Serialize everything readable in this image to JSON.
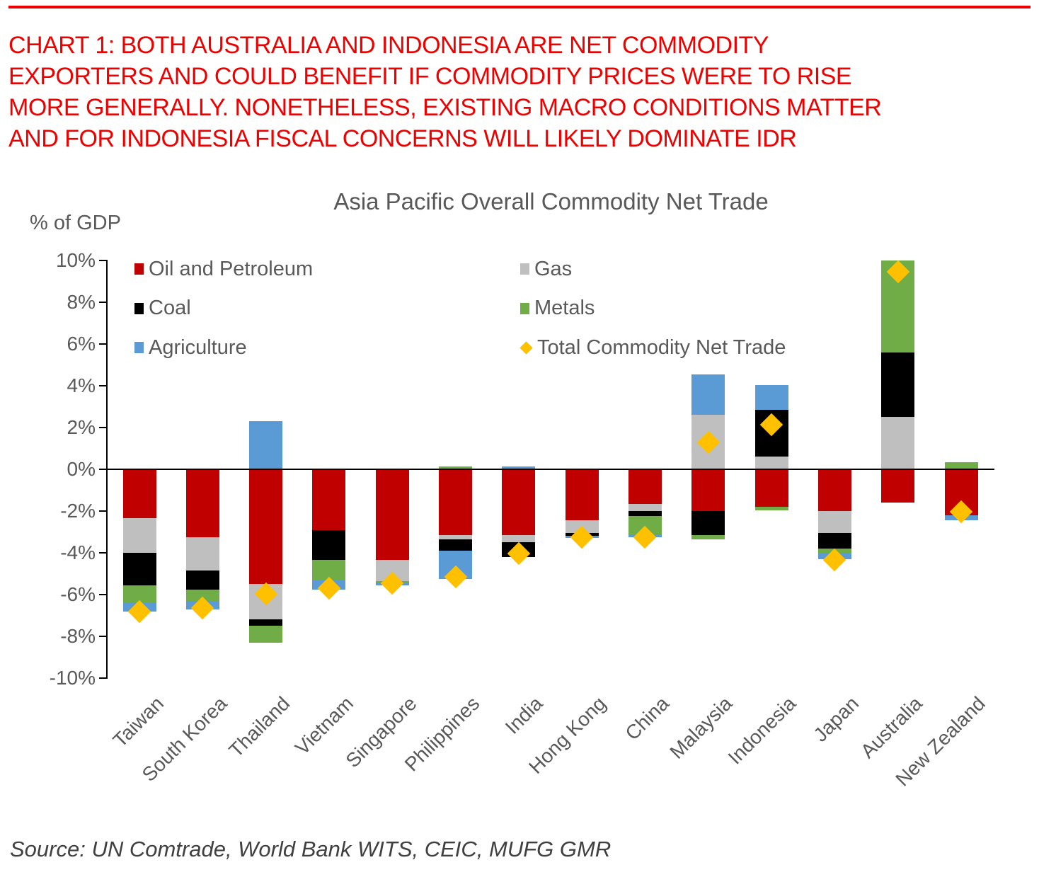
{
  "header": {
    "color": "#EC0000",
    "lines": [
      "CHART 1: BOTH AUSTRALIA AND INDONESIA ARE NET COMMODITY",
      "EXPORTERS AND COULD BENEFIT IF COMMODITY PRICES WERE TO RISE",
      "MORE GENERALLY. NONETHELESS, EXISTING MACRO CONDITIONS MATTER",
      "AND FOR INDONESIA FISCAL CONCERNS WILL LIKELY DOMINATE IDR"
    ]
  },
  "chart_data": {
    "type": "bar",
    "stacked": true,
    "title": "Asia Pacific Overall Commodity Net Trade",
    "ylabel": "% of GDP",
    "xlabel": "",
    "ylim": [
      -10,
      10
    ],
    "ytick_step": 2,
    "ytick_labels": [
      "10%",
      "8%",
      "6%",
      "4%",
      "2%",
      "0%",
      "-2%",
      "-4%",
      "-6%",
      "-8%",
      "-10%"
    ],
    "gridlines": "zero-line-only",
    "legend_position": "top-inside-two-columns",
    "categories": [
      "Taiwan",
      "South Korea",
      "Thailand",
      "Vietnam",
      "Singapore",
      "Philippines",
      "India",
      "Hong Kong",
      "China",
      "Malaysia",
      "Indonesia",
      "Japan",
      "Australia",
      "New Zealand"
    ],
    "series": [
      {
        "name": "Oil and Petroleum",
        "color": "#C00000",
        "values": [
          -2.35,
          -3.25,
          -5.5,
          -2.9,
          -4.35,
          -3.15,
          -3.15,
          -2.45,
          -1.65,
          -2.0,
          -1.8,
          -2.0,
          -1.6,
          -2.2
        ]
      },
      {
        "name": "Gas",
        "color": "#BFBFBF",
        "values": [
          -1.65,
          -1.6,
          -1.7,
          0,
          -1.0,
          -0.2,
          -0.35,
          -0.6,
          -0.35,
          2.6,
          0.6,
          -1.05,
          2.5,
          0
        ]
      },
      {
        "name": "Coal",
        "color": "#000000",
        "values": [
          -1.55,
          -0.9,
          -0.3,
          -1.45,
          0,
          -0.55,
          -0.7,
          -0.15,
          -0.25,
          -1.15,
          2.25,
          -0.75,
          3.1,
          0
        ]
      },
      {
        "name": "Metals",
        "color": "#70AD47",
        "values": [
          -0.85,
          -0.55,
          -0.8,
          -0.95,
          -0.1,
          0.15,
          0,
          0,
          -0.9,
          -0.2,
          -0.15,
          -0.2,
          5.45,
          0.35
        ]
      },
      {
        "name": "Agriculture",
        "color": "#5B9BD5",
        "values": [
          -0.4,
          -0.4,
          2.3,
          -0.45,
          -0.1,
          -1.35,
          0.15,
          -0.1,
          -0.1,
          1.95,
          1.2,
          -0.3,
          0,
          -0.25
        ]
      }
    ],
    "marker_series": {
      "name": "Total Commodity Net Trade",
      "shape": "diamond",
      "color": "#FFC000",
      "values": [
        -6.8,
        -6.65,
        -5.95,
        -5.7,
        -5.45,
        -5.15,
        -4.05,
        -3.25,
        -3.25,
        1.3,
        2.15,
        -4.35,
        9.45,
        -2.05
      ]
    },
    "legend_columns": [
      [
        "Oil and Petroleum",
        "Coal",
        "Agriculture"
      ],
      [
        "Gas",
        "Metals",
        "Total Commodity Net Trade"
      ]
    ],
    "note": "Australia metals bar is clipped at the 10% axis maximum"
  },
  "source": "Source: UN Comtrade, World Bank WITS, CEIC, MUFG GMR"
}
